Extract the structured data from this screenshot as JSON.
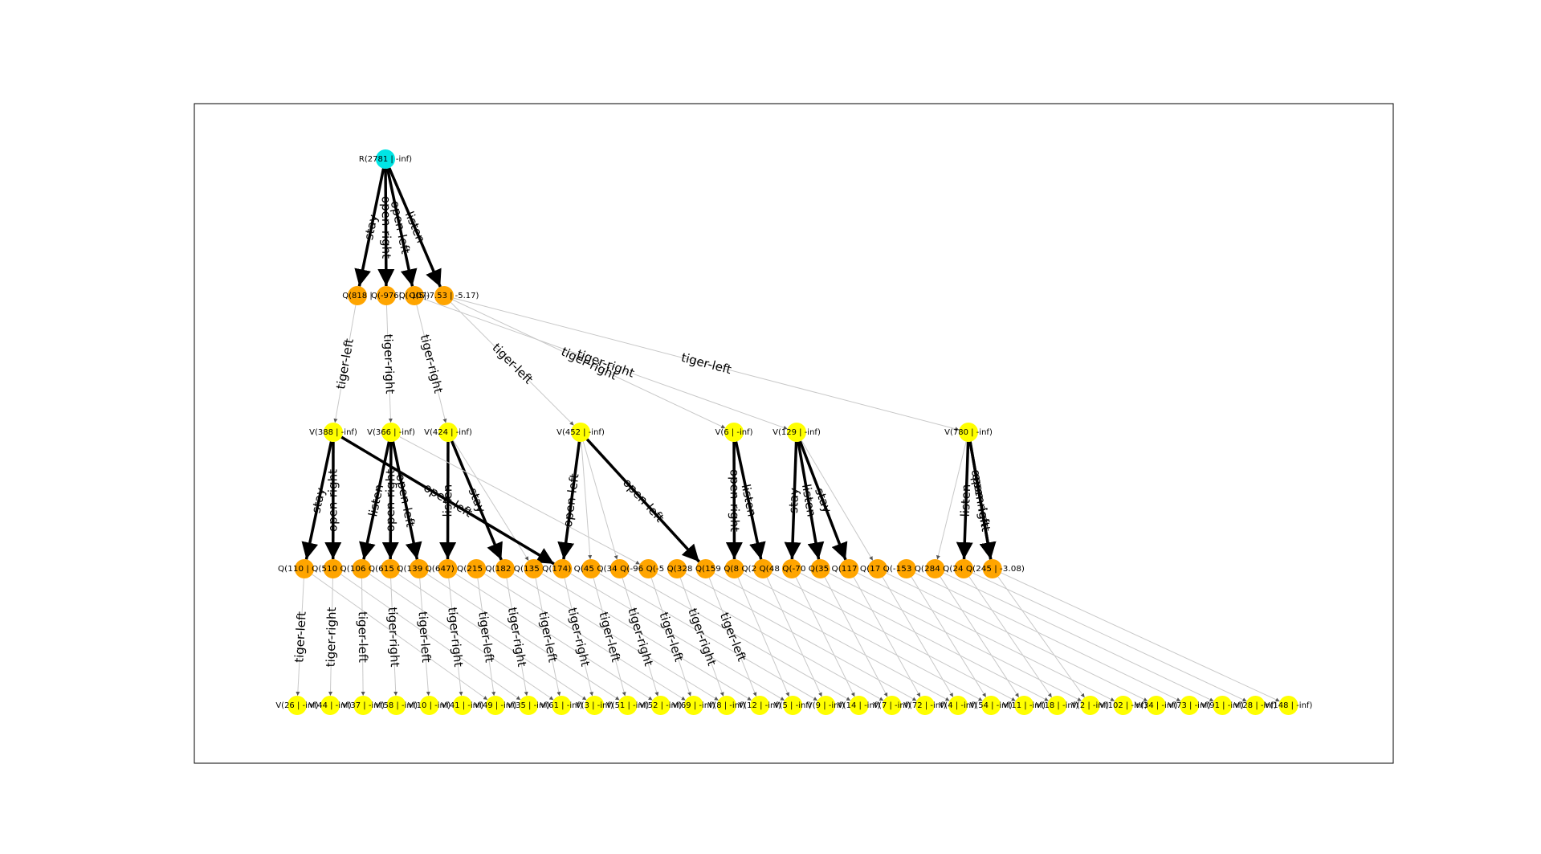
{
  "colors": {
    "root": "#00e5e5",
    "action": "#ffa500",
    "belief": "#ffff00",
    "edge_light": "#c8c8c8",
    "edge_heavy": "#000000"
  },
  "nodes": {
    "root": {
      "label": "R(2781 | -inf)"
    },
    "q1": [
      {
        "label": "Q(818 |"
      },
      {
        "label": "Q(-976|"
      },
      {
        "label": "Q(-107)"
      },
      {
        "label": "Q(5|-7.53 | -5.17)"
      }
    ],
    "v1": [
      {
        "label": "V(388 | -inf)"
      },
      {
        "label": "V(366 | -inf)"
      },
      {
        "label": "V(424 | -inf)"
      },
      {
        "label": "V(452 | -inf)"
      },
      {
        "label": "V(6 | -inf)"
      },
      {
        "label": "V(129 | -inf)"
      },
      {
        "label": "V(780 | -inf)"
      }
    ],
    "q2_text": "Q(110 | Q(510 Q(106 Q(615 Q(139 Q(647) Q(215 Q(182 Q(135 Q(174) Q(45 Q(34 Q(-96 Q(-5 Q(328 Q(159 Q(8 Q(2 Q(48 Q(-70 Q(35 Q(117 Q(17 Q(-153 Q(284 Q(24 Q(245 | -3.08)",
    "v2": [
      {
        "label": "V(26 | -inf)"
      },
      {
        "label": "V(44 | -inf)"
      },
      {
        "label": "V(37 | -inf)"
      },
      {
        "label": "V(58 | -inf)"
      },
      {
        "label": "V(10 | -inf)"
      },
      {
        "label": "V(41 | -inf)"
      },
      {
        "label": "V(49 | -inf)"
      },
      {
        "label": "V(35 | -inf)"
      },
      {
        "label": "V(61 | -inf)"
      },
      {
        "label": "V(3 | -inf)"
      },
      {
        "label": "V(51 | -inf)"
      },
      {
        "label": "V(52 | -inf)"
      },
      {
        "label": "V(69 | -inf)"
      },
      {
        "label": "V(8 | -inf)"
      },
      {
        "label": "V(12 | -inf)"
      },
      {
        "label": "V(5 | -inf)"
      },
      {
        "label": "V(9 | -inf)"
      },
      {
        "label": "V(14 | -inf)"
      },
      {
        "label": "V(7 | -inf)"
      },
      {
        "label": "V(72 | -inf)"
      },
      {
        "label": "V(4 | -inf)"
      },
      {
        "label": "V(54 | -inf)"
      },
      {
        "label": "V(11 | -inf)"
      },
      {
        "label": "V(18 | -inf)"
      },
      {
        "label": "V(2 | -inf)"
      },
      {
        "label": "V(102 | -inf)"
      },
      {
        "label": "V(34 | -inf)"
      },
      {
        "label": "V(73 | -inf)"
      },
      {
        "label": "V(91 | -inf)"
      },
      {
        "label": "V(28 | -inf)"
      },
      {
        "label": "V(148 | -inf)"
      }
    ]
  },
  "edge_labels": {
    "root": [
      "stay",
      "open-right",
      "open-left",
      "listen"
    ],
    "q1": [
      "tiger-left",
      "tiger-right",
      "tiger-right",
      "tiger-left",
      "tiger-right",
      "tiger-right",
      "tiger-left"
    ],
    "v1": [
      "stay",
      "open-right",
      "listen",
      "open-right",
      "open-left",
      "listen",
      "stay",
      "open-left",
      "open-left",
      "open-right",
      "listen",
      "stay",
      "listen",
      "stay",
      "listen",
      "open-right",
      "open-left",
      "open-left",
      "open-right",
      "stay",
      "listen"
    ],
    "q2": [
      "tiger-left",
      "tiger-right",
      "tiger-left",
      "tiger-right",
      "tiger-left",
      "tiger-right",
      "tiger-left",
      "tiger-right",
      "tiger-left",
      "tiger-right",
      "tiger-left",
      "tiger-right",
      "tiger-left",
      "tiger-right",
      "tiger-left",
      "tiger-right",
      "tiger-left",
      "tiger-right",
      "tiger-left",
      "tiger-right",
      "tiger-left",
      "tiger-right",
      "tiger-left",
      "tiger-right",
      "tiger-left",
      "tiger-right",
      "tiger-left",
      "tiger-right",
      "tiger-left",
      "tiger-right"
    ]
  }
}
